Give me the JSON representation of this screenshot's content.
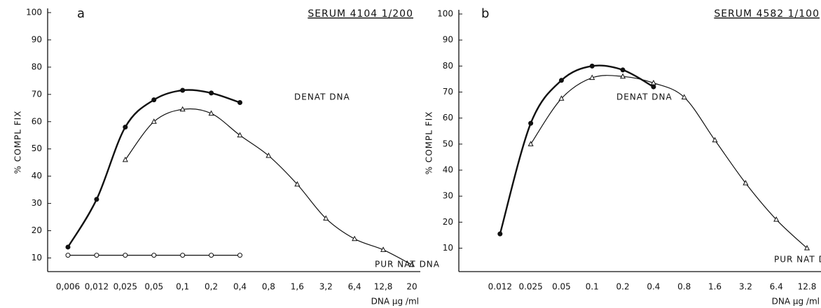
{
  "chart_data": [
    {
      "type": "line",
      "panel": "a",
      "title": "SERUM 4104 1/200",
      "ylabel": "% COMPL FIX",
      "xlabel": "DNA µg /ml",
      "categories": [
        "0,006",
        "0,012",
        "0,025",
        "0,05",
        "0,1",
        "0,2",
        "0,4",
        "0,8",
        "1,6",
        "3,2",
        "6,4",
        "12,8",
        "20"
      ],
      "ylim": [
        5,
        100
      ],
      "yticks": [
        10,
        20,
        30,
        40,
        50,
        60,
        70,
        80,
        90,
        100
      ],
      "series": [
        {
          "name": "DENAT DNA",
          "marker": "filled-circle",
          "color": "#111",
          "values": [
            14,
            31.5,
            58,
            68,
            71.5,
            70.5,
            67,
            null,
            null,
            null,
            null,
            null,
            null
          ]
        },
        {
          "name": "PUR NAT DNA",
          "marker": "triangle",
          "color": "#111",
          "values": [
            null,
            null,
            46,
            60,
            64.5,
            63,
            55,
            47.5,
            37,
            24.5,
            17,
            13,
            7.5
          ]
        },
        {
          "marker": "open-circle",
          "color": "#111",
          "values": [
            11,
            11,
            11,
            11,
            11,
            11,
            11,
            null,
            null,
            null,
            null,
            null,
            null
          ]
        }
      ]
    },
    {
      "type": "line",
      "panel": "b",
      "title": "SERUM 4582 1/100",
      "ylabel": "% COMPL FIX",
      "xlabel": "DNA µg /ml",
      "categories": [
        null,
        "0.012",
        "0.025",
        "0.05",
        "0.1",
        "0.2",
        "0.4",
        "0.8",
        "1.6",
        "3.2",
        "6.4",
        "12.8"
      ],
      "ylim": [
        1,
        100
      ],
      "yticks": [
        10,
        20,
        30,
        40,
        50,
        60,
        70,
        80,
        90,
        100
      ],
      "series": [
        {
          "name": "DENAT DNA",
          "marker": "filled-circle",
          "color": "#111",
          "values": [
            null,
            15.5,
            58,
            74.5,
            80,
            78.5,
            72,
            null,
            null,
            null,
            null,
            null
          ]
        },
        {
          "name": "PUR NAT DNA",
          "marker": "triangle",
          "color": "#111",
          "values": [
            null,
            null,
            50,
            67.5,
            75.5,
            76,
            73.5,
            68,
            51.5,
            35,
            21,
            10
          ]
        }
      ]
    }
  ]
}
